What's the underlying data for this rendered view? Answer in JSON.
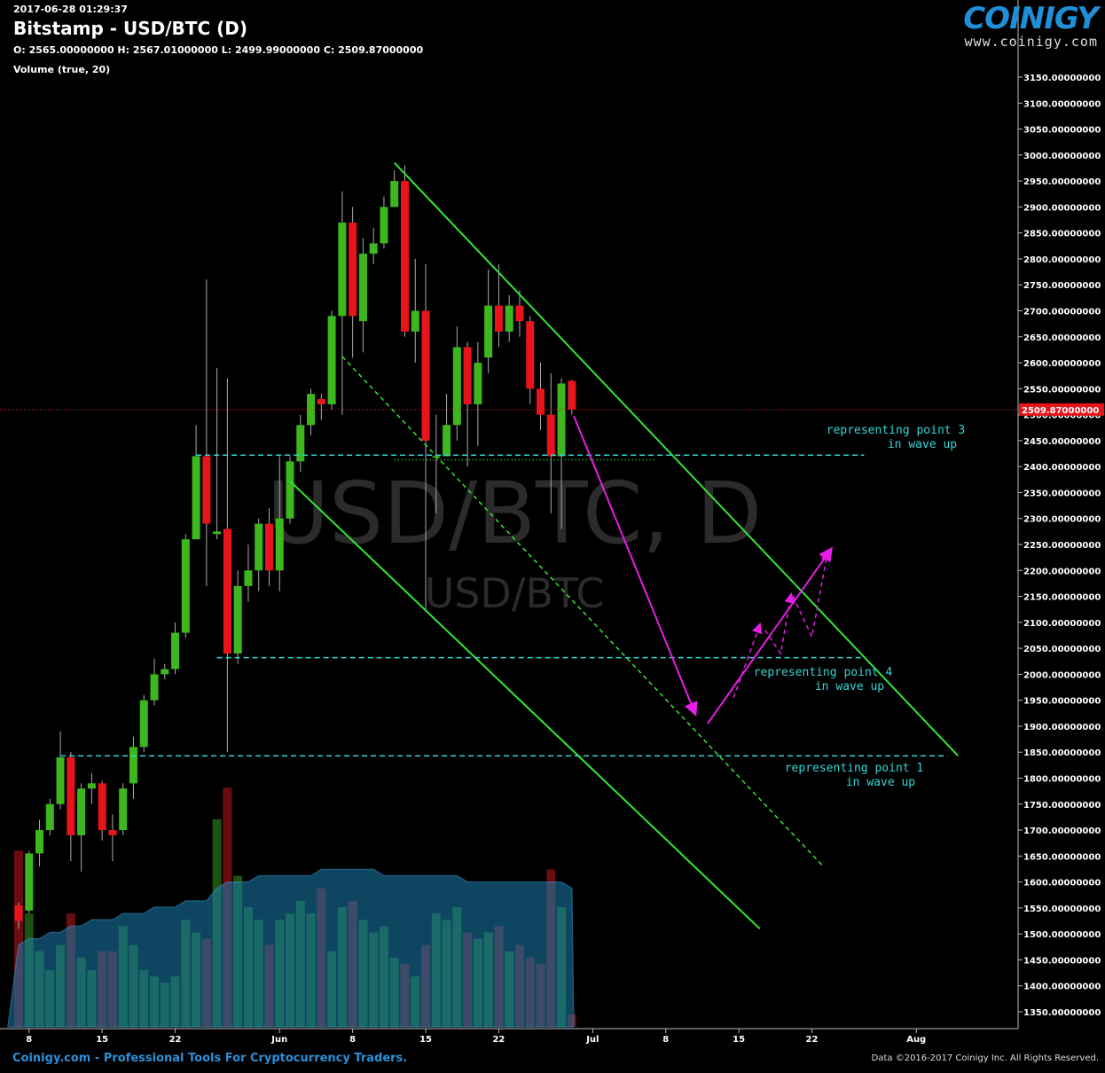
{
  "header": {
    "timestamp": "2017-06-28 01:29:37",
    "title": "Bitstamp - USD/BTC (D)",
    "ohlc": "O: 2565.00000000 H: 2567.01000000 L: 2499.99000000 C: 2509.87000000",
    "volume_label": "Volume (true, 20)"
  },
  "logo": {
    "name": "COINIGY",
    "url": "www.coinigy.com"
  },
  "footer": {
    "left": "Coinigy.com - Professional Tools For Cryptocurrency Traders.",
    "right": "Data ©2016-2017 Coinigy Inc. All Rights Reserved."
  },
  "colors": {
    "background": "#000000",
    "up": "#3cb81e",
    "down": "#e8141c",
    "trendline": "#33e633",
    "support": "#33d6d6",
    "projection": "#e61ee6",
    "volume_ma_fill": "#1a7fb0",
    "price_marker": "#e8141c"
  },
  "chart_data": {
    "type": "candlestick",
    "watermark": {
      "main": "USD/BTC, D",
      "sub": "USD/BTC"
    },
    "y_axis": {
      "min": 1320,
      "max": 3180,
      "ticks": [
        "3150.00000000",
        "3100.00000000",
        "3050.00000000",
        "3000.00000000",
        "2950.00000000",
        "2900.00000000",
        "2850.00000000",
        "2800.00000000",
        "2750.00000000",
        "2700.00000000",
        "2650.00000000",
        "2600.00000000",
        "2550.00000000",
        "2500.00000000",
        "2450.00000000",
        "2400.00000000",
        "2350.00000000",
        "2300.00000000",
        "2250.00000000",
        "2200.00000000",
        "2150.00000000",
        "2100.00000000",
        "2050.00000000",
        "2000.00000000",
        "1950.00000000",
        "1900.00000000",
        "1850.00000000",
        "1800.00000000",
        "1750.00000000",
        "1700.00000000",
        "1650.00000000",
        "1600.00000000",
        "1550.00000000",
        "1500.00000000",
        "1450.00000000",
        "1400.00000000",
        "1350.00000000"
      ]
    },
    "x_axis": {
      "labels": [
        "8",
        "15",
        "22",
        "Jun",
        "8",
        "15",
        "22",
        "Jul",
        "8",
        "15",
        "22",
        "Aug"
      ]
    },
    "last_price": "2509.87000000",
    "candles": [
      [
        "May 7",
        1555,
        1560,
        1510,
        1525
      ],
      [
        "May 8",
        1545,
        1660,
        1540,
        1655
      ],
      [
        "May 9",
        1655,
        1720,
        1630,
        1700
      ],
      [
        "May 10",
        1700,
        1760,
        1690,
        1750
      ],
      [
        "May 11",
        1750,
        1890,
        1740,
        1840
      ],
      [
        "May 12",
        1840,
        1850,
        1640,
        1690
      ],
      [
        "May 13",
        1690,
        1790,
        1620,
        1780
      ],
      [
        "May 14",
        1780,
        1810,
        1750,
        1790
      ],
      [
        "May 15",
        1790,
        1795,
        1680,
        1700
      ],
      [
        "May 16",
        1700,
        1730,
        1640,
        1690
      ],
      [
        "May 17",
        1700,
        1790,
        1690,
        1780
      ],
      [
        "May 18",
        1790,
        1880,
        1760,
        1860
      ],
      [
        "May 19",
        1860,
        1960,
        1850,
        1950
      ],
      [
        "May 20",
        1950,
        2030,
        1940,
        2000
      ],
      [
        "May 21",
        2000,
        2020,
        1990,
        2010
      ],
      [
        "May 22",
        2010,
        2100,
        2000,
        2080
      ],
      [
        "May 23",
        2080,
        2270,
        2070,
        2260
      ],
      [
        "May 24",
        2260,
        2480,
        2260,
        2420
      ],
      [
        "May 25",
        2420,
        2760,
        2170,
        2290
      ],
      [
        "May 26",
        2270,
        2590,
        2260,
        2275
      ],
      [
        "May 27",
        2280,
        2570,
        1850,
        2040
      ],
      [
        "May 28",
        2040,
        2200,
        2020,
        2170
      ],
      [
        "May 29",
        2170,
        2250,
        2140,
        2200
      ],
      [
        "May 30",
        2200,
        2300,
        2160,
        2290
      ],
      [
        "May 31",
        2290,
        2320,
        2170,
        2200
      ],
      [
        "Jun 1",
        2200,
        2420,
        2160,
        2300
      ],
      [
        "Jun 2",
        2300,
        2420,
        2290,
        2410
      ],
      [
        "Jun 3",
        2410,
        2500,
        2390,
        2480
      ],
      [
        "Jun 4",
        2480,
        2550,
        2460,
        2540
      ],
      [
        "Jun 5",
        2530,
        2540,
        2490,
        2520
      ],
      [
        "Jun 6",
        2520,
        2700,
        2510,
        2690
      ],
      [
        "Jun 7",
        2690,
        2930,
        2500,
        2870
      ],
      [
        "Jun 8",
        2870,
        2900,
        2610,
        2690
      ],
      [
        "Jun 9",
        2680,
        2840,
        2620,
        2810
      ],
      [
        "Jun 10",
        2810,
        2860,
        2790,
        2830
      ],
      [
        "Jun 11",
        2830,
        2920,
        2820,
        2900
      ],
      [
        "Jun 12",
        2900,
        2970,
        2910,
        2950
      ],
      [
        "Jun 13",
        2950,
        2980,
        2650,
        2660
      ],
      [
        "Jun 14",
        2660,
        2800,
        2600,
        2700
      ],
      [
        "Jun 15",
        2700,
        2790,
        2120,
        2450
      ],
      [
        "Jun 16",
        2420,
        2500,
        2310,
        2420
      ],
      [
        "Jun 17",
        2420,
        2540,
        2420,
        2480
      ],
      [
        "Jun 18",
        2480,
        2670,
        2450,
        2630
      ],
      [
        "Jun 19",
        2630,
        2640,
        2400,
        2520
      ],
      [
        "Jun 20",
        2520,
        2640,
        2440,
        2600
      ],
      [
        "Jun 21",
        2610,
        2780,
        2580,
        2710
      ],
      [
        "Jun 22",
        2710,
        2790,
        2630,
        2660
      ],
      [
        "Jun 23",
        2660,
        2730,
        2640,
        2710
      ],
      [
        "Jun 24",
        2710,
        2740,
        2650,
        2680
      ],
      [
        "Jun 25",
        2680,
        2690,
        2520,
        2550
      ],
      [
        "Jun 26",
        2550,
        2600,
        2470,
        2500
      ],
      [
        "Jun 27",
        2500,
        2580,
        2310,
        2420
      ],
      [
        "Jun 28",
        2420,
        2570,
        2280,
        2560
      ],
      [
        "Jun 29",
        2565,
        2567.01,
        2499.99,
        2509.87
      ]
    ],
    "volume": [
      28,
      18,
      12,
      9,
      13,
      18,
      11,
      9,
      12,
      12,
      16,
      13,
      9,
      8,
      7,
      8,
      17,
      15,
      14,
      33,
      38,
      24,
      19,
      17,
      13,
      17,
      18,
      20,
      18,
      22,
      12,
      19,
      20,
      17,
      15,
      16,
      11,
      10,
      8,
      13,
      18,
      17,
      19,
      15,
      14,
      15,
      16,
      12,
      13,
      11,
      10,
      25,
      19,
      2
    ],
    "volume_ma": [
      13,
      14,
      14,
      15,
      15,
      16,
      16,
      17,
      17,
      17,
      18,
      18,
      18,
      19,
      19,
      19,
      20,
      20,
      20,
      22,
      23,
      23,
      23,
      24,
      24,
      24,
      24,
      24,
      24,
      25,
      25,
      25,
      25,
      25,
      25,
      24,
      24,
      24,
      24,
      24,
      24,
      24,
      24,
      23,
      23,
      23,
      23,
      23,
      23,
      23,
      23,
      23,
      23,
      22
    ],
    "annotations": {
      "support_lines": [
        {
          "price": 2422,
          "label": [
            "representing point 3",
            "in wave up"
          ]
        },
        {
          "price": 2032,
          "label": [
            "representing point 4",
            "in wave up"
          ]
        },
        {
          "price": 1843,
          "label": [
            "representing point 1",
            "in wave up"
          ]
        }
      ]
    }
  }
}
